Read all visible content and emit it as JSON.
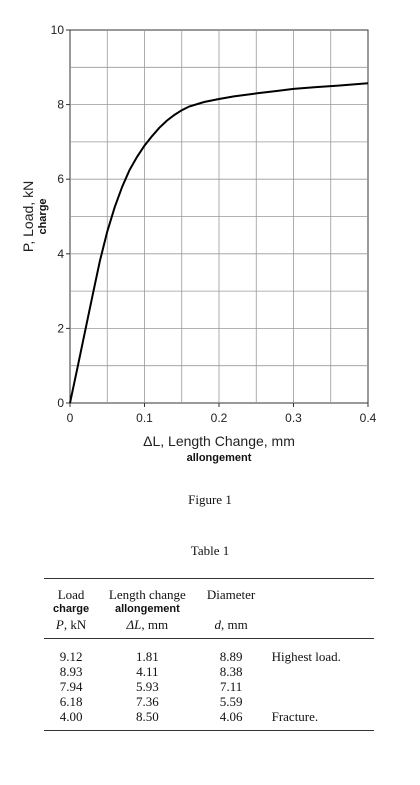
{
  "chart_data": {
    "type": "line",
    "ylabel": "P, Load, kN",
    "ylabel_sub": "charge",
    "xlabel": "ΔL, Length Change, mm",
    "xlabel_sub": "allongement",
    "xlim": [
      0,
      0.4
    ],
    "ylim": [
      0,
      10
    ],
    "grid": true,
    "x_ticks": [
      "0",
      "0.1",
      "0.2",
      "0.3",
      "0.4"
    ],
    "y_ticks": [
      "0",
      "2",
      "4",
      "6",
      "8",
      "10"
    ],
    "series": [
      {
        "x": [
          0,
          0.01,
          0.02,
          0.03,
          0.04,
          0.05,
          0.06,
          0.07,
          0.08,
          0.09,
          0.1,
          0.11,
          0.12,
          0.13,
          0.14,
          0.15,
          0.16,
          0.18,
          0.2,
          0.22,
          0.25,
          0.28,
          0.3,
          0.33,
          0.36,
          0.4
        ],
        "y": [
          0,
          0.95,
          1.9,
          2.85,
          3.8,
          4.6,
          5.25,
          5.8,
          6.25,
          6.6,
          6.9,
          7.15,
          7.38,
          7.57,
          7.72,
          7.85,
          7.95,
          8.07,
          8.15,
          8.22,
          8.3,
          8.37,
          8.42,
          8.47,
          8.51,
          8.57
        ],
        "color": "#000000"
      }
    ]
  },
  "figure_caption": "Figure 1",
  "table_caption": "Table 1",
  "table": {
    "headers": [
      {
        "label": "Load",
        "sub": "charge",
        "var": "P",
        "unit": ", kN"
      },
      {
        "label": "Length change",
        "sub": "allongement",
        "var": "ΔL",
        "unit": ", mm"
      },
      {
        "label": "Diameter",
        "sub": "",
        "var": "d",
        "unit": ", mm"
      },
      {
        "label": "",
        "sub": "",
        "var": "",
        "unit": ""
      }
    ],
    "rows": [
      [
        "9.12",
        "1.81",
        "8.89",
        "Highest load."
      ],
      [
        "8.93",
        "4.11",
        "8.38",
        ""
      ],
      [
        "7.94",
        "5.93",
        "7.11",
        ""
      ],
      [
        "6.18",
        "7.36",
        "5.59",
        ""
      ],
      [
        "4.00",
        "8.50",
        "4.06",
        "Fracture."
      ]
    ]
  }
}
